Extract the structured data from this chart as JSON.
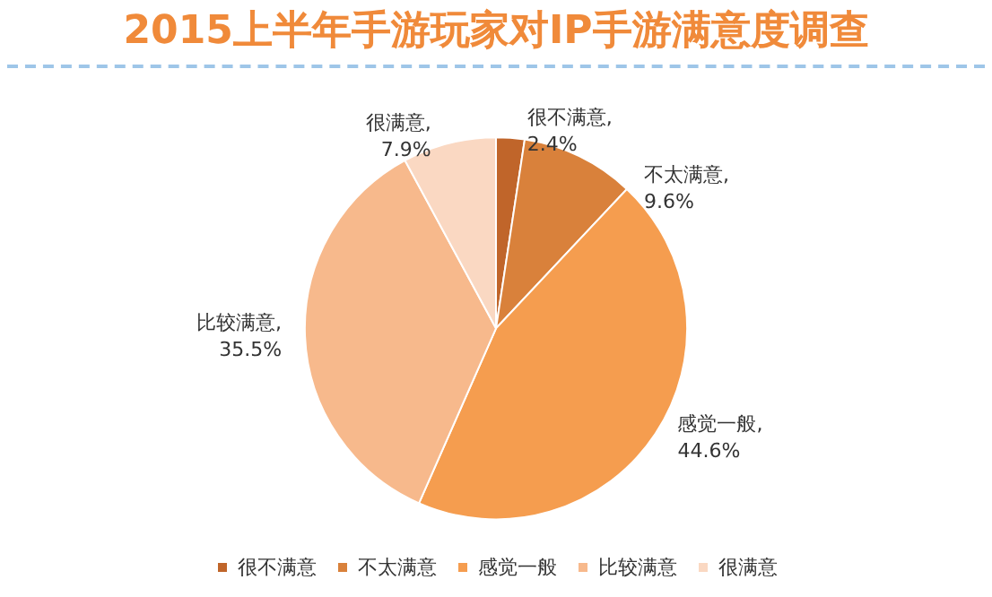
{
  "chart_data": {
    "type": "pie",
    "title": "2015上半年手游玩家对IP手游满意度调查",
    "categories": [
      "很不满意",
      "不太满意",
      "感觉一般",
      "比较满意",
      "很满意"
    ],
    "values": [
      2.4,
      9.6,
      44.6,
      35.5,
      7.9
    ],
    "value_labels": [
      "很不满意,\n2.4%",
      "不太满意,\n9.6%",
      "感觉一般,\n44.6%",
      "比较满意,\n35.5%",
      "很满意,\n7.9%"
    ],
    "colors": [
      "#c0652a",
      "#d9813b",
      "#f59d4f",
      "#f7b98c",
      "#fad8c2"
    ],
    "legend": "bottom"
  }
}
